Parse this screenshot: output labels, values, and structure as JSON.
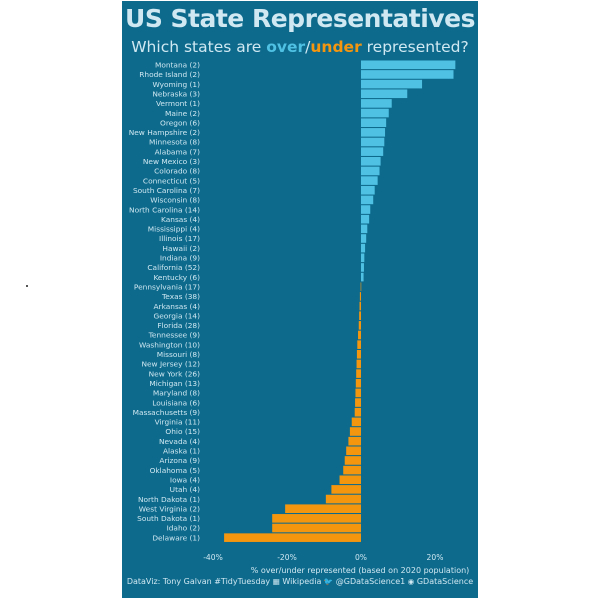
{
  "title": "US State Representatives",
  "subtitle": {
    "prefix": "Which states are ",
    "over": "over",
    "slash": "/",
    "under": "under",
    "suffix": " represented?"
  },
  "caption": {
    "by": "DataViz: Tony Galvan #TidyTuesday",
    "source_icon": "table-icon",
    "source": "Wikipedia",
    "twitter_icon": "twitter-bird-icon",
    "twitter": "@GDataScience1",
    "github_icon": "github-icon",
    "github": "GDataScience"
  },
  "colors": {
    "background": "#0e6a8c",
    "over": "#4fc1e3",
    "under": "#f5960f",
    "text": "#cfe8f2"
  },
  "chart_data": {
    "type": "bar",
    "orientation": "horizontal",
    "xlabel": "% over/under represented (based on 2020 population)",
    "xlim": [
      -44,
      26
    ],
    "xticks": [
      -40,
      -20,
      0,
      20
    ],
    "xtick_labels": [
      "-40%",
      "-20%",
      "0%",
      "20%"
    ],
    "grid": false,
    "categories": [
      "Montana (2)",
      "Rhode Island (2)",
      "Wyoming (1)",
      "Nebraska (3)",
      "Vermont (1)",
      "Maine (2)",
      "Oregon (6)",
      "New Hampshire (2)",
      "Minnesota (8)",
      "Alabama (7)",
      "New Mexico (3)",
      "Colorado (8)",
      "Connecticut (5)",
      "South Carolina (7)",
      "Wisconsin (8)",
      "North Carolina (14)",
      "Kansas (4)",
      "Mississippi (4)",
      "Illinois (17)",
      "Hawaii (2)",
      "Indiana (9)",
      "California (52)",
      "Kentucky (6)",
      "Pennsylvania (17)",
      "Texas (38)",
      "Arkansas (4)",
      "Georgia (14)",
      "Florida (28)",
      "Tennessee (9)",
      "Washington (10)",
      "Missouri (8)",
      "New Jersey (12)",
      "New York (26)",
      "Michigan (13)",
      "Maryland (8)",
      "Louisiana (6)",
      "Massachusetts (9)",
      "Virginia (11)",
      "Ohio (15)",
      "Nevada (4)",
      "Alaska (1)",
      "Arizona (9)",
      "Oklahoma (5)",
      "Iowa (4)",
      "Utah (4)",
      "North Dakota (1)",
      "West Virginia (2)",
      "South Dakota (1)",
      "Idaho (2)",
      "Delaware (1)"
    ],
    "values": [
      25.5,
      25.0,
      16.5,
      12.5,
      8.3,
      7.5,
      6.8,
      6.5,
      6.3,
      6.0,
      5.3,
      5.0,
      4.5,
      3.7,
      3.3,
      2.5,
      2.2,
      1.7,
      1.4,
      1.1,
      0.9,
      0.8,
      0.7,
      -0.1,
      -0.3,
      -0.4,
      -0.5,
      -0.6,
      -0.8,
      -1.0,
      -1.1,
      -1.2,
      -1.3,
      -1.4,
      -1.5,
      -1.6,
      -1.7,
      -2.5,
      -3.0,
      -3.4,
      -4.0,
      -4.4,
      -4.8,
      -5.8,
      -8.0,
      -9.5,
      -20.5,
      -24.0,
      -24.0,
      -37.0
    ]
  }
}
